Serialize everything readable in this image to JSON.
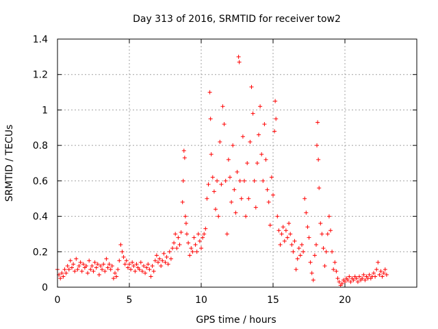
{
  "chart_data": {
    "type": "scatter",
    "title": "Day 313 of 2016, SRMTID for receiver tow2",
    "xlabel": "GPS time / hours",
    "ylabel": "SRMTID / TECUs",
    "xlim": [
      0,
      25
    ],
    "ylim": [
      0,
      1.4
    ],
    "xticks": [
      0,
      5,
      10,
      15,
      20
    ],
    "xtick_labels": [
      "0",
      "5",
      "10",
      "15",
      "20"
    ],
    "yticks": [
      0,
      0.2,
      0.4,
      0.6,
      0.8,
      1.0,
      1.2,
      1.4
    ],
    "ytick_labels": [
      "0",
      "0.2",
      "0.4",
      "0.6",
      "0.8",
      "1",
      "1.2",
      "1.4"
    ],
    "grid": true,
    "marker": "plus",
    "color": "#ff0000",
    "series": [
      {
        "name": "SRMTID",
        "points": [
          [
            0.0,
            0.1
          ],
          [
            0.1,
            0.07
          ],
          [
            0.2,
            0.05
          ],
          [
            0.3,
            0.08
          ],
          [
            0.4,
            0.06
          ],
          [
            0.5,
            0.1
          ],
          [
            0.6,
            0.08
          ],
          [
            0.7,
            0.12
          ],
          [
            0.8,
            0.1
          ],
          [
            0.9,
            0.15
          ],
          [
            1.0,
            0.11
          ],
          [
            1.1,
            0.13
          ],
          [
            1.2,
            0.09
          ],
          [
            1.3,
            0.16
          ],
          [
            1.4,
            0.1
          ],
          [
            1.5,
            0.12
          ],
          [
            1.6,
            0.14
          ],
          [
            1.7,
            0.09
          ],
          [
            1.8,
            0.13
          ],
          [
            1.9,
            0.11
          ],
          [
            2.0,
            0.12
          ],
          [
            2.1,
            0.08
          ],
          [
            2.2,
            0.15
          ],
          [
            2.3,
            0.1
          ],
          [
            2.4,
            0.12
          ],
          [
            2.5,
            0.09
          ],
          [
            2.6,
            0.14
          ],
          [
            2.7,
            0.11
          ],
          [
            2.8,
            0.13
          ],
          [
            2.9,
            0.07
          ],
          [
            3.0,
            0.12
          ],
          [
            3.1,
            0.1
          ],
          [
            3.2,
            0.13
          ],
          [
            3.3,
            0.09
          ],
          [
            3.4,
            0.16
          ],
          [
            3.5,
            0.11
          ],
          [
            3.6,
            0.13
          ],
          [
            3.7,
            0.1
          ],
          [
            3.8,
            0.12
          ],
          [
            3.9,
            0.05
          ],
          [
            4.0,
            0.08
          ],
          [
            4.1,
            0.06
          ],
          [
            4.2,
            0.1
          ],
          [
            4.3,
            0.15
          ],
          [
            4.4,
            0.24
          ],
          [
            4.5,
            0.2
          ],
          [
            4.6,
            0.17
          ],
          [
            4.7,
            0.13
          ],
          [
            4.8,
            0.15
          ],
          [
            4.9,
            0.11
          ],
          [
            5.0,
            0.13
          ],
          [
            5.1,
            0.1
          ],
          [
            5.2,
            0.14
          ],
          [
            5.3,
            0.12
          ],
          [
            5.4,
            0.09
          ],
          [
            5.5,
            0.13
          ],
          [
            5.6,
            0.11
          ],
          [
            5.7,
            0.1
          ],
          [
            5.8,
            0.14
          ],
          [
            5.9,
            0.09
          ],
          [
            6.0,
            0.12
          ],
          [
            6.1,
            0.08
          ],
          [
            6.2,
            0.11
          ],
          [
            6.3,
            0.13
          ],
          [
            6.4,
            0.1
          ],
          [
            6.5,
            0.06
          ],
          [
            6.6,
            0.12
          ],
          [
            6.7,
            0.09
          ],
          [
            6.8,
            0.15
          ],
          [
            6.9,
            0.18
          ],
          [
            7.0,
            0.14
          ],
          [
            7.1,
            0.16
          ],
          [
            7.2,
            0.12
          ],
          [
            7.3,
            0.15
          ],
          [
            7.4,
            0.19
          ],
          [
            7.5,
            0.14
          ],
          [
            7.6,
            0.17
          ],
          [
            7.7,
            0.13
          ],
          [
            7.8,
            0.2
          ],
          [
            7.9,
            0.16
          ],
          [
            8.0,
            0.22
          ],
          [
            8.1,
            0.25
          ],
          [
            8.2,
            0.3
          ],
          [
            8.3,
            0.22
          ],
          [
            8.4,
            0.28
          ],
          [
            8.5,
            0.24
          ],
          [
            8.6,
            0.31
          ],
          [
            8.7,
            0.48
          ],
          [
            8.75,
            0.6
          ],
          [
            8.8,
            0.77
          ],
          [
            8.85,
            0.73
          ],
          [
            8.9,
            0.4
          ],
          [
            8.95,
            0.36
          ],
          [
            9.0,
            0.3
          ],
          [
            9.1,
            0.25
          ],
          [
            9.2,
            0.18
          ],
          [
            9.3,
            0.22
          ],
          [
            9.4,
            0.2
          ],
          [
            9.5,
            0.28
          ],
          [
            9.6,
            0.24
          ],
          [
            9.7,
            0.2
          ],
          [
            9.8,
            0.3
          ],
          [
            9.9,
            0.26
          ],
          [
            10.0,
            0.22
          ],
          [
            10.1,
            0.28
          ],
          [
            10.2,
            0.3
          ],
          [
            10.3,
            0.33
          ],
          [
            10.4,
            0.5
          ],
          [
            10.5,
            0.58
          ],
          [
            10.6,
            1.1
          ],
          [
            10.65,
            0.95
          ],
          [
            10.7,
            0.75
          ],
          [
            10.8,
            0.62
          ],
          [
            10.9,
            0.54
          ],
          [
            11.0,
            0.44
          ],
          [
            11.1,
            0.6
          ],
          [
            11.2,
            0.4
          ],
          [
            11.3,
            0.82
          ],
          [
            11.4,
            0.58
          ],
          [
            11.5,
            1.02
          ],
          [
            11.6,
            0.92
          ],
          [
            11.7,
            0.6
          ],
          [
            11.8,
            0.3
          ],
          [
            11.9,
            0.72
          ],
          [
            12.0,
            0.62
          ],
          [
            12.1,
            0.48
          ],
          [
            12.2,
            0.8
          ],
          [
            12.3,
            0.55
          ],
          [
            12.4,
            0.42
          ],
          [
            12.5,
            0.65
          ],
          [
            12.6,
            1.3
          ],
          [
            12.65,
            1.27
          ],
          [
            12.7,
            0.6
          ],
          [
            12.8,
            0.5
          ],
          [
            12.9,
            0.85
          ],
          [
            13.0,
            0.6
          ],
          [
            13.1,
            0.4
          ],
          [
            13.2,
            0.7
          ],
          [
            13.3,
            0.5
          ],
          [
            13.4,
            0.82
          ],
          [
            13.5,
            1.13
          ],
          [
            13.6,
            0.98
          ],
          [
            13.7,
            0.6
          ],
          [
            13.8,
            0.45
          ],
          [
            13.9,
            0.7
          ],
          [
            14.0,
            0.86
          ],
          [
            14.1,
            1.02
          ],
          [
            14.2,
            0.75
          ],
          [
            14.3,
            0.6
          ],
          [
            14.4,
            0.92
          ],
          [
            14.5,
            0.72
          ],
          [
            14.6,
            0.55
          ],
          [
            14.7,
            0.48
          ],
          [
            14.8,
            0.35
          ],
          [
            14.9,
            0.62
          ],
          [
            15.0,
            0.52
          ],
          [
            15.1,
            0.88
          ],
          [
            15.15,
            1.05
          ],
          [
            15.2,
            0.95
          ],
          [
            15.3,
            0.4
          ],
          [
            15.4,
            0.32
          ],
          [
            15.5,
            0.24
          ],
          [
            15.6,
            0.3
          ],
          [
            15.7,
            0.34
          ],
          [
            15.8,
            0.26
          ],
          [
            15.9,
            0.32
          ],
          [
            16.0,
            0.28
          ],
          [
            16.1,
            0.36
          ],
          [
            16.2,
            0.3
          ],
          [
            16.3,
            0.24
          ],
          [
            16.4,
            0.2
          ],
          [
            16.5,
            0.26
          ],
          [
            16.6,
            0.1
          ],
          [
            16.7,
            0.16
          ],
          [
            16.8,
            0.22
          ],
          [
            16.9,
            0.18
          ],
          [
            17.0,
            0.24
          ],
          [
            17.1,
            0.2
          ],
          [
            17.2,
            0.5
          ],
          [
            17.3,
            0.42
          ],
          [
            17.4,
            0.34
          ],
          [
            17.5,
            0.28
          ],
          [
            17.6,
            0.14
          ],
          [
            17.7,
            0.08
          ],
          [
            17.8,
            0.04
          ],
          [
            17.9,
            0.18
          ],
          [
            18.0,
            0.24
          ],
          [
            18.05,
            0.8
          ],
          [
            18.1,
            0.93
          ],
          [
            18.15,
            0.72
          ],
          [
            18.2,
            0.56
          ],
          [
            18.3,
            0.36
          ],
          [
            18.4,
            0.3
          ],
          [
            18.5,
            0.22
          ],
          [
            18.6,
            0.12
          ],
          [
            18.7,
            0.2
          ],
          [
            18.8,
            0.3
          ],
          [
            18.9,
            0.4
          ],
          [
            19.0,
            0.32
          ],
          [
            19.1,
            0.2
          ],
          [
            19.2,
            0.1
          ],
          [
            19.3,
            0.14
          ],
          [
            19.4,
            0.09
          ],
          [
            19.5,
            0.05
          ],
          [
            19.6,
            0.03
          ],
          [
            19.7,
            0.01
          ],
          [
            19.8,
            0.02
          ],
          [
            19.9,
            0.04
          ],
          [
            20.0,
            0.03
          ],
          [
            20.1,
            0.05
          ],
          [
            20.2,
            0.04
          ],
          [
            20.3,
            0.06
          ],
          [
            20.4,
            0.03
          ],
          [
            20.5,
            0.05
          ],
          [
            20.6,
            0.04
          ],
          [
            20.7,
            0.06
          ],
          [
            20.8,
            0.05
          ],
          [
            20.9,
            0.03
          ],
          [
            21.0,
            0.06
          ],
          [
            21.1,
            0.04
          ],
          [
            21.2,
            0.05
          ],
          [
            21.3,
            0.07
          ],
          [
            21.4,
            0.04
          ],
          [
            21.5,
            0.06
          ],
          [
            21.6,
            0.05
          ],
          [
            21.7,
            0.07
          ],
          [
            21.8,
            0.05
          ],
          [
            21.9,
            0.06
          ],
          [
            22.0,
            0.08
          ],
          [
            22.1,
            0.06
          ],
          [
            22.2,
            0.1
          ],
          [
            22.3,
            0.14
          ],
          [
            22.4,
            0.07
          ],
          [
            22.5,
            0.09
          ],
          [
            22.6,
            0.06
          ],
          [
            22.7,
            0.08
          ],
          [
            22.8,
            0.1
          ],
          [
            22.9,
            0.07
          ]
        ]
      }
    ]
  }
}
